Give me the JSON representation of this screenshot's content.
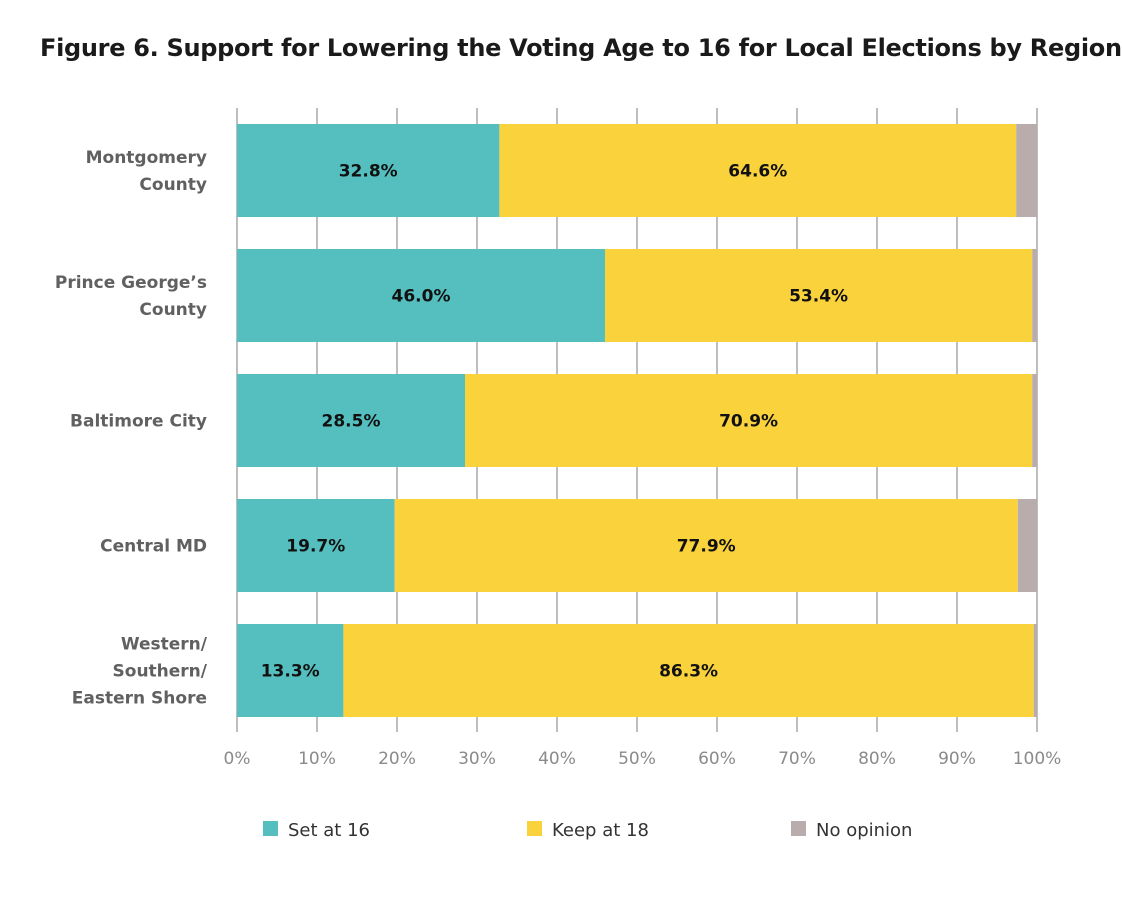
{
  "chart_data": {
    "type": "bar",
    "orientation": "horizontal",
    "stacked": true,
    "title": "Figure 6. Support for Lowering the Voting Age to 16 for Local Elections by Region",
    "categories": [
      [
        "Montgomery",
        "County"
      ],
      [
        "Prince George’s",
        "County"
      ],
      [
        "Baltimore City"
      ],
      [
        "Central MD"
      ],
      [
        "Western/",
        "Southern/",
        "Eastern Shore"
      ]
    ],
    "series": [
      {
        "name": "Set at 16",
        "color": "#55bfbf",
        "values": [
          32.8,
          46.0,
          28.5,
          19.7,
          13.3
        ],
        "labels": [
          "32.8%",
          "46.0%",
          "28.5%",
          "19.7%",
          "13.3%"
        ]
      },
      {
        "name": "Keep at 18",
        "color": "#f9d23c",
        "values": [
          64.6,
          53.4,
          70.9,
          77.9,
          86.3
        ],
        "labels": [
          "64.6%",
          "53.4%",
          "70.9%",
          "77.9%",
          "86.3%"
        ]
      },
      {
        "name": "No opinion",
        "color": "#b8adac",
        "values": [
          2.6,
          0.6,
          0.6,
          2.4,
          0.4
        ],
        "labels": []
      }
    ],
    "xlim": [
      0,
      100
    ],
    "xticks": [
      "0%",
      "10%",
      "20%",
      "30%",
      "40%",
      "50%",
      "60%",
      "70%",
      "80%",
      "90%",
      "100%"
    ],
    "grid": "vertical",
    "legend_position": "bottom"
  }
}
